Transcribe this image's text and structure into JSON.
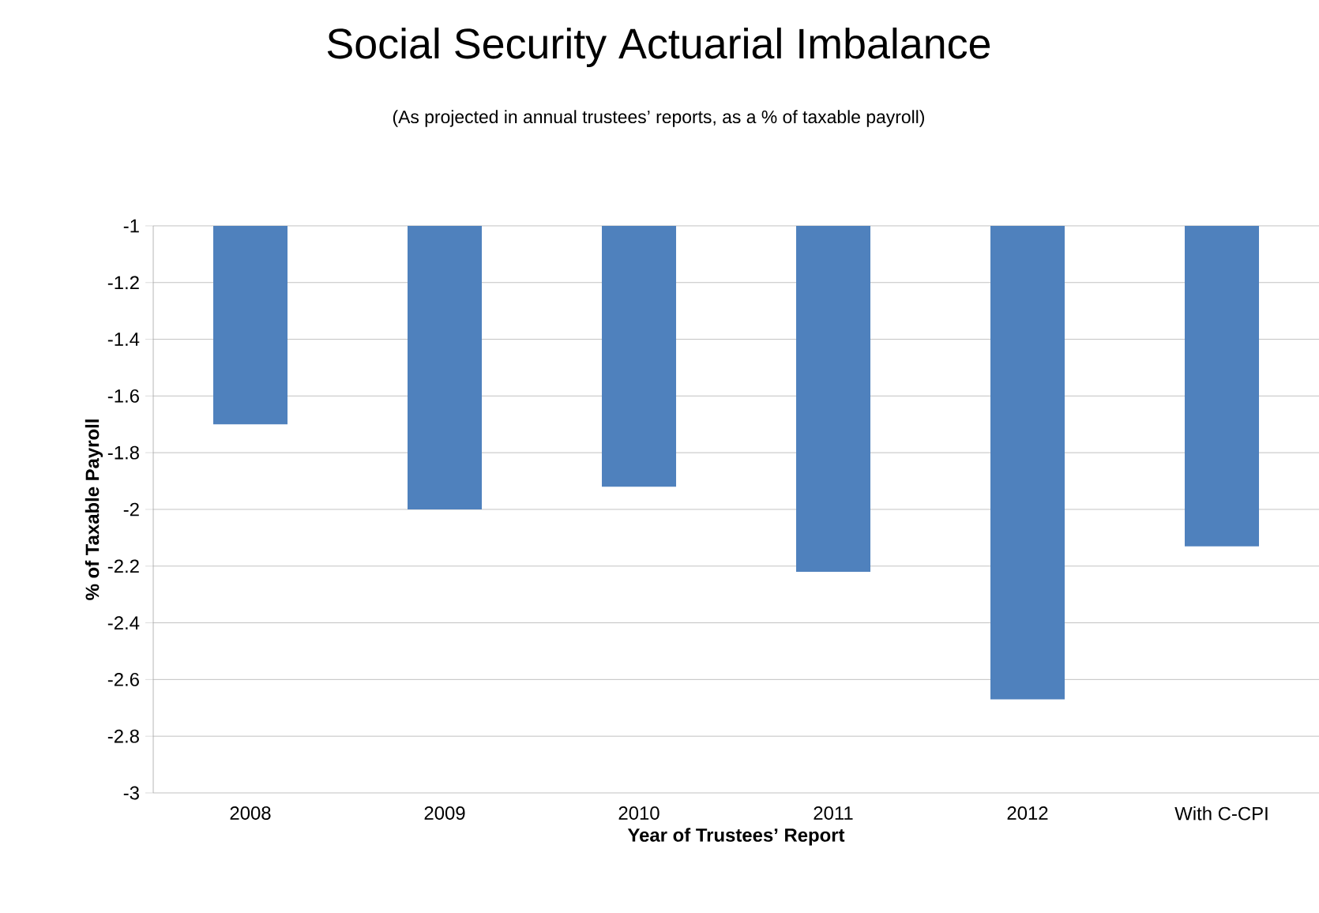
{
  "chart_data": {
    "type": "bar",
    "title": "Social Security Actuarial Imbalance",
    "subtitle": "(As projected in annual trustees’ reports, as a % of taxable payroll)",
    "xlabel": "Year of Trustees’ Report",
    "ylabel": "% of Taxable Payroll",
    "categories": [
      "2008",
      "2009",
      "2010",
      "2011",
      "2012",
      "With C-CPI"
    ],
    "values": [
      -1.7,
      -2.0,
      -1.92,
      -2.22,
      -2.67,
      -2.13
    ],
    "color": "#4f81bd",
    "ylim": [
      -3,
      -1
    ],
    "yticks": [
      -3,
      -2.8,
      -2.6,
      -2.4,
      -2.2,
      -2,
      -1.8,
      -1.6,
      -1.4,
      -1.2,
      -1
    ],
    "grid": "y"
  }
}
